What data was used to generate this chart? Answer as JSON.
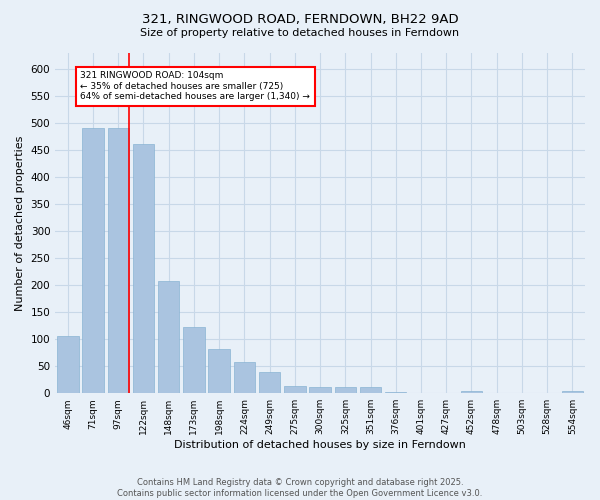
{
  "title": "321, RINGWOOD ROAD, FERNDOWN, BH22 9AD",
  "subtitle": "Size of property relative to detached houses in Ferndown",
  "xlabel": "Distribution of detached houses by size in Ferndown",
  "ylabel": "Number of detached properties",
  "footer_line1": "Contains HM Land Registry data © Crown copyright and database right 2025.",
  "footer_line2": "Contains public sector information licensed under the Open Government Licence v3.0.",
  "categories": [
    "46sqm",
    "71sqm",
    "97sqm",
    "122sqm",
    "148sqm",
    "173sqm",
    "198sqm",
    "224sqm",
    "249sqm",
    "275sqm",
    "300sqm",
    "325sqm",
    "351sqm",
    "376sqm",
    "401sqm",
    "427sqm",
    "452sqm",
    "478sqm",
    "503sqm",
    "528sqm",
    "554sqm"
  ],
  "values": [
    105,
    490,
    490,
    460,
    207,
    122,
    82,
    57,
    40,
    14,
    11,
    11,
    12,
    2,
    1,
    0,
    5,
    0,
    0,
    0,
    5
  ],
  "bar_color": "#aac4e0",
  "bar_edge_color": "#8ab4d4",
  "grid_color": "#c8d8e8",
  "background_color": "#e8f0f8",
  "vline_color": "red",
  "vline_x_index": 2,
  "annotation_text": "321 RINGWOOD ROAD: 104sqm\n← 35% of detached houses are smaller (725)\n64% of semi-detached houses are larger (1,340) →",
  "annotation_box_color": "white",
  "annotation_box_edge": "red",
  "ylim": [
    0,
    630
  ],
  "yticks": [
    0,
    50,
    100,
    150,
    200,
    250,
    300,
    350,
    400,
    450,
    500,
    550,
    600
  ]
}
